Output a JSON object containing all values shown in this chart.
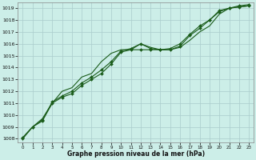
{
  "title": "Graphe pression niveau de la mer (hPa)",
  "background_color": "#cceee8",
  "grid_color": "#aacccc",
  "line_color": "#1a5c1a",
  "xlim_min": -0.5,
  "xlim_max": 23.5,
  "ylim_min": 1007.7,
  "ylim_max": 1019.5,
  "yticks": [
    1008,
    1009,
    1010,
    1011,
    1012,
    1013,
    1014,
    1015,
    1016,
    1017,
    1018,
    1019
  ],
  "xticks": [
    0,
    1,
    2,
    3,
    4,
    5,
    6,
    7,
    8,
    9,
    10,
    11,
    12,
    13,
    14,
    15,
    16,
    17,
    18,
    19,
    20,
    21,
    22,
    23
  ],
  "hours": [
    0,
    1,
    2,
    3,
    4,
    5,
    6,
    7,
    8,
    9,
    10,
    11,
    12,
    13,
    14,
    15,
    16,
    17,
    18,
    19,
    20,
    21,
    22,
    23
  ],
  "line_main": [
    1008.0,
    1009.0,
    1009.5,
    1011.0,
    1011.5,
    1011.8,
    1012.5,
    1013.0,
    1013.5,
    1014.3,
    1015.3,
    1015.5,
    1015.5,
    1015.5,
    1015.5,
    1015.5,
    1015.8,
    1016.7,
    1017.3,
    1018.0,
    1018.7,
    1019.0,
    1019.1,
    1019.2
  ],
  "line_upper": [
    1008.1,
    1009.0,
    1009.6,
    1011.1,
    1011.6,
    1012.0,
    1012.7,
    1013.2,
    1013.8,
    1014.5,
    1015.4,
    1015.6,
    1016.0,
    1015.6,
    1015.5,
    1015.6,
    1016.0,
    1016.8,
    1017.5,
    1018.0,
    1018.8,
    1019.0,
    1019.2,
    1019.3
  ],
  "line_diverge": [
    1008.1,
    1009.0,
    1009.7,
    1011.0,
    1012.0,
    1012.3,
    1013.2,
    1013.5,
    1014.5,
    1015.2,
    1015.5,
    1015.5,
    1016.0,
    1015.7,
    1015.5,
    1015.5,
    1015.7,
    1016.3,
    1017.0,
    1017.5,
    1018.5,
    1019.0,
    1019.1,
    1019.2
  ]
}
